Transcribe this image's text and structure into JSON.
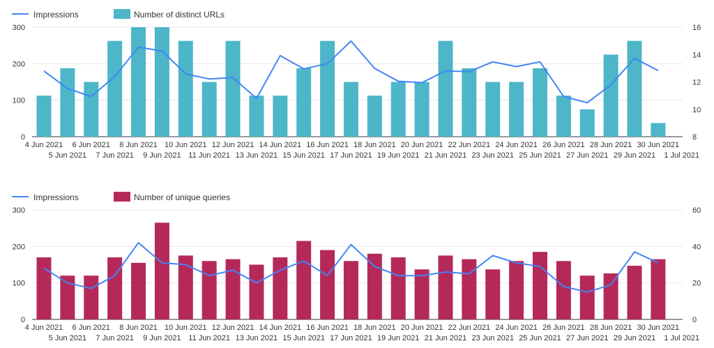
{
  "chart_data": [
    {
      "type": "bar",
      "categories": [
        "4 Jun 2021",
        "5 Jun 2021",
        "6 Jun 2021",
        "7 Jun 2021",
        "8 Jun 2021",
        "9 Jun 2021",
        "10 Jun 2021",
        "11 Jun 2021",
        "12 Jun 2021",
        "13 Jun 2021",
        "14 Jun 2021",
        "15 Jun 2021",
        "16 Jun 2021",
        "17 Jun 2021",
        "18 Jun 2021",
        "19 Jun 2021",
        "20 Jun 2021",
        "21 Jun 2021",
        "22 Jun 2021",
        "23 Jun 2021",
        "24 Jun 2021",
        "25 Jun 2021",
        "26 Jun 2021",
        "27 Jun 2021",
        "28 Jun 2021",
        "29 Jun 2021",
        "30 Jun 2021",
        "1 Jul 2021"
      ],
      "bar_series": {
        "name": "Number of distinct URLs",
        "color": "#4db6c8",
        "axis": "right",
        "values": [
          11,
          13,
          12,
          15,
          16,
          16,
          15,
          12,
          15,
          11,
          11,
          13,
          15,
          12,
          11,
          12,
          12,
          15,
          13,
          12,
          12,
          13,
          11,
          10,
          14,
          15,
          9,
          null
        ]
      },
      "line_series": {
        "name": "Impressions",
        "color": "#4285f4",
        "axis": "left",
        "values": [
          180,
          132,
          110,
          165,
          245,
          235,
          172,
          158,
          162,
          105,
          222,
          186,
          200,
          262,
          187,
          152,
          148,
          180,
          178,
          205,
          192,
          205,
          110,
          93,
          142,
          215,
          181,
          null
        ]
      },
      "left_axis": {
        "ylim": [
          0,
          300
        ],
        "ticks": [
          0,
          100,
          200,
          300
        ]
      },
      "right_axis": {
        "ylim": [
          8,
          16
        ],
        "ticks": [
          8,
          10,
          12,
          14,
          16
        ]
      },
      "legend_placement": "top-left"
    },
    {
      "type": "bar",
      "categories": [
        "4 Jun 2021",
        "5 Jun 2021",
        "6 Jun 2021",
        "7 Jun 2021",
        "8 Jun 2021",
        "9 Jun 2021",
        "10 Jun 2021",
        "11 Jun 2021",
        "12 Jun 2021",
        "13 Jun 2021",
        "14 Jun 2021",
        "15 Jun 2021",
        "16 Jun 2021",
        "17 Jun 2021",
        "18 Jun 2021",
        "19 Jun 2021",
        "20 Jun 2021",
        "21 Jun 2021",
        "22 Jun 2021",
        "23 Jun 2021",
        "24 Jun 2021",
        "25 Jun 2021",
        "26 Jun 2021",
        "27 Jun 2021",
        "28 Jun 2021",
        "29 Jun 2021",
        "30 Jun 2021",
        "1 Jul 2021"
      ],
      "bar_series": {
        "name": "Number of unique queries",
        "color": "#b5295a",
        "axis": "left",
        "values": [
          170,
          120,
          120,
          170,
          155,
          265,
          175,
          160,
          165,
          150,
          170,
          215,
          190,
          160,
          180,
          170,
          137,
          175,
          165,
          137,
          160,
          185,
          160,
          120,
          126,
          147,
          165,
          null
        ]
      },
      "line_series": {
        "name": "Impressions",
        "color": "#4285f4",
        "axis": "right",
        "values": [
          28,
          20,
          17,
          24,
          42,
          31,
          30,
          24,
          27,
          20,
          27,
          32,
          24,
          41,
          29,
          24,
          24,
          26,
          25,
          35,
          31,
          29,
          18,
          15,
          19,
          37,
          31,
          null
        ]
      },
      "left_axis": {
        "ylim": [
          0,
          300
        ],
        "ticks": [
          0,
          100,
          200,
          300
        ]
      },
      "right_axis": {
        "ylim": [
          0,
          60
        ],
        "ticks": [
          0,
          20,
          40,
          60
        ]
      },
      "legend_placement": "top-left"
    }
  ]
}
